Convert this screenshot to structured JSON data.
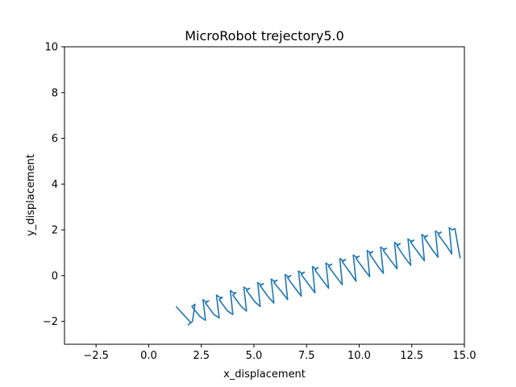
{
  "chart_data": {
    "type": "line",
    "title": "MicroRobot trejectory5.0",
    "xlabel": "x_displacement",
    "ylabel": "y_displacement",
    "xlim": [
      -4.0,
      15.0
    ],
    "ylim": [
      -3.0,
      10.0
    ],
    "x_ticks": [
      -2.5,
      0.0,
      2.5,
      5.0,
      7.5,
      10.0,
      12.5,
      15.0
    ],
    "x_tick_labels": [
      "−2.5",
      "0.0",
      "2.5",
      "5.0",
      "7.5",
      "10.0",
      "12.5",
      "15.0"
    ],
    "y_ticks": [
      -2,
      0,
      2,
      4,
      6,
      8,
      10
    ],
    "y_tick_labels": [
      "−2",
      "0",
      "2",
      "4",
      "6",
      "8",
      "10"
    ],
    "grid": false,
    "series": [
      {
        "color": "#1f77b4",
        "x": [
          1.3,
          1.75,
          2.0,
          1.88,
          2.08,
          2.2,
          2.05,
          2.45,
          2.7,
          2.58,
          2.72,
          2.85,
          2.7,
          3.1,
          3.35,
          3.22,
          3.38,
          3.5,
          3.35,
          3.75,
          4.0,
          3.88,
          4.02,
          4.15,
          4.0,
          4.4,
          4.65,
          4.52,
          4.68,
          4.8,
          4.65,
          5.05,
          5.3,
          5.18,
          5.32,
          5.45,
          5.3,
          5.7,
          5.95,
          5.82,
          5.98,
          6.1,
          5.95,
          6.35,
          6.6,
          6.48,
          6.62,
          6.75,
          6.6,
          7.0,
          7.25,
          7.12,
          7.28,
          7.4,
          7.25,
          7.65,
          7.9,
          7.78,
          7.92,
          8.05,
          7.9,
          8.3,
          8.55,
          8.42,
          8.58,
          8.7,
          8.55,
          8.95,
          9.2,
          9.08,
          9.22,
          9.35,
          9.2,
          9.6,
          9.85,
          9.72,
          9.88,
          10.0,
          9.85,
          10.25,
          10.5,
          10.38,
          10.52,
          10.65,
          10.5,
          10.9,
          11.15,
          11.02,
          11.18,
          11.3,
          11.15,
          11.55,
          11.8,
          11.68,
          11.82,
          11.95,
          11.8,
          12.2,
          12.45,
          12.32,
          12.48,
          12.6,
          12.45,
          12.85,
          13.1,
          12.98,
          13.12,
          13.25,
          13.1,
          13.5,
          13.75,
          13.62,
          13.78,
          13.9,
          13.75,
          14.15,
          14.4,
          14.28,
          14.42,
          14.55,
          14.8
        ],
        "y": [
          -1.35,
          -1.8,
          -2.05,
          -2.15,
          -2.0,
          -1.25,
          -1.35,
          -1.8,
          -1.95,
          -1.05,
          -1.15,
          -1.1,
          -1.2,
          -1.7,
          -1.85,
          -0.85,
          -0.95,
          -0.95,
          -1.05,
          -1.55,
          -1.7,
          -0.65,
          -0.75,
          -0.75,
          -0.85,
          -1.35,
          -1.55,
          -0.5,
          -0.6,
          -0.55,
          -0.65,
          -1.15,
          -1.35,
          -0.3,
          -0.4,
          -0.35,
          -0.45,
          -0.95,
          -1.2,
          -0.15,
          -0.25,
          -0.2,
          -0.3,
          -0.75,
          -1.05,
          0.05,
          -0.05,
          0.0,
          -0.1,
          -0.6,
          -0.9,
          0.2,
          0.1,
          0.15,
          0.05,
          -0.45,
          -0.75,
          0.4,
          0.3,
          0.35,
          0.25,
          -0.25,
          -0.55,
          0.55,
          0.45,
          0.5,
          0.4,
          -0.1,
          -0.4,
          0.75,
          0.65,
          0.7,
          0.6,
          0.1,
          -0.25,
          0.9,
          0.8,
          0.85,
          0.75,
          0.25,
          -0.05,
          1.1,
          1.0,
          1.05,
          0.95,
          0.4,
          0.1,
          1.25,
          1.15,
          1.2,
          1.1,
          0.6,
          0.3,
          1.45,
          1.35,
          1.4,
          1.3,
          0.75,
          0.45,
          1.6,
          1.5,
          1.55,
          1.45,
          0.95,
          0.65,
          1.8,
          1.7,
          1.75,
          1.65,
          1.1,
          0.8,
          1.95,
          1.85,
          1.9,
          1.8,
          1.3,
          0.95,
          2.1,
          2.0,
          2.05,
          0.75
        ]
      }
    ]
  }
}
